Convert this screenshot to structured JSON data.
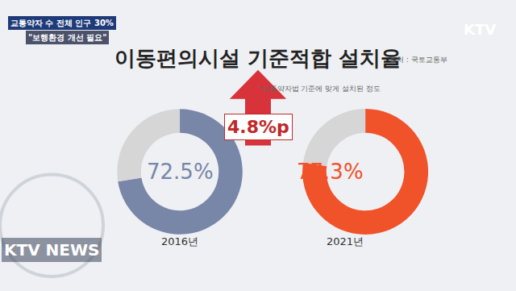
{
  "chart_data": {
    "type": "pie",
    "title": "이동편의시설 기준적합 설치율",
    "subtitle": "*교통약자법 기준에 맞게 설치된 정도",
    "source": "출처 : 국토교통부",
    "annotations": [
      "교통약자 수 전체 인구 30%",
      "\"보행환경 개선 필요\"",
      "KTV",
      "KTV NEWS",
      "4.8%p"
    ],
    "series": [
      {
        "name": "2016년",
        "values": [
          72.5,
          27.5
        ],
        "value_labels": [
          "72.5%",
          null
        ],
        "colors": [
          "#7886a8",
          "#d6d6d6"
        ]
      },
      {
        "name": "2021년",
        "values": [
          77.3,
          22.7
        ],
        "value_labels": [
          "77.3%",
          null
        ],
        "colors": [
          "#f0522a",
          "#d6d6d6"
        ]
      }
    ]
  }
}
